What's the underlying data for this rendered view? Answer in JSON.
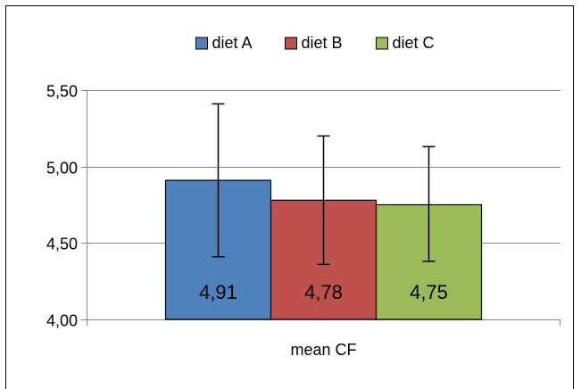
{
  "chart_data": {
    "type": "bar",
    "categories": [
      "mean CF"
    ],
    "series": [
      {
        "name": "diet A",
        "values": [
          4.91
        ],
        "error_low": [
          4.41
        ],
        "error_high": [
          5.41
        ],
        "color": "#4F81BD",
        "label": "4,91"
      },
      {
        "name": "diet B",
        "values": [
          4.78
        ],
        "error_low": [
          4.36
        ],
        "error_high": [
          5.2
        ],
        "color": "#C0504D",
        "label": "4,78"
      },
      {
        "name": "diet C",
        "values": [
          4.75
        ],
        "error_low": [
          4.38
        ],
        "error_high": [
          5.13
        ],
        "color": "#9BBB59",
        "label": "4,75"
      }
    ],
    "ylim": [
      4.0,
      5.5
    ],
    "yticks": [
      4.0,
      4.5,
      5.0,
      5.5
    ],
    "ytick_labels": [
      "4,00",
      "4,50",
      "5,00",
      "5,50"
    ],
    "grid": true,
    "legend": "top-center",
    "error_bars": true
  }
}
